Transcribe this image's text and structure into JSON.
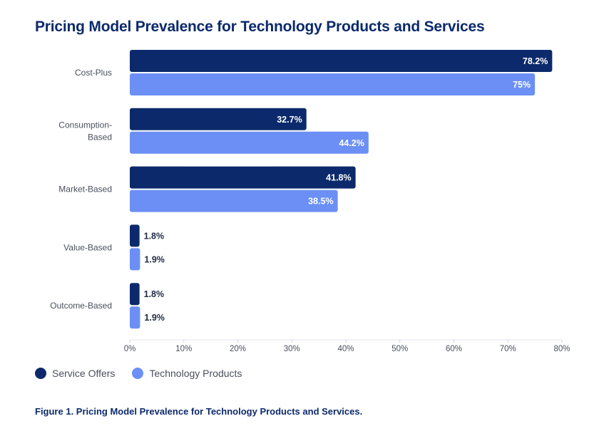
{
  "chart_data": {
    "type": "bar",
    "orientation": "horizontal",
    "title": "Pricing Model Prevalence for Technology Products and Services",
    "categories": [
      "Cost-Plus",
      "Consumption-Based",
      "Market-Based",
      "Value-Based",
      "Outcome-Based"
    ],
    "series": [
      {
        "name": "Service Offers",
        "color": "#0c2a6b",
        "values": [
          78.2,
          32.7,
          41.8,
          1.8,
          1.8
        ],
        "labels": [
          "78.2%",
          "32.7%",
          "41.8%",
          "1.8%",
          "1.8%"
        ]
      },
      {
        "name": "Technology Products",
        "color": "#6b8ff5",
        "values": [
          75,
          44.2,
          38.5,
          1.9,
          1.9
        ],
        "labels": [
          "75%",
          "44.2%",
          "38.5%",
          "1.9%",
          "1.9%"
        ]
      }
    ],
    "xlim": [
      0,
      80
    ],
    "xticks": [
      "0%",
      "10%",
      "20%",
      "30%",
      "40%",
      "50%",
      "60%",
      "70%",
      "80%"
    ],
    "legend_position": "bottom-left",
    "grid": false
  },
  "caption": "Figure 1. Pricing Model Prevalence for Technology Products and Services."
}
